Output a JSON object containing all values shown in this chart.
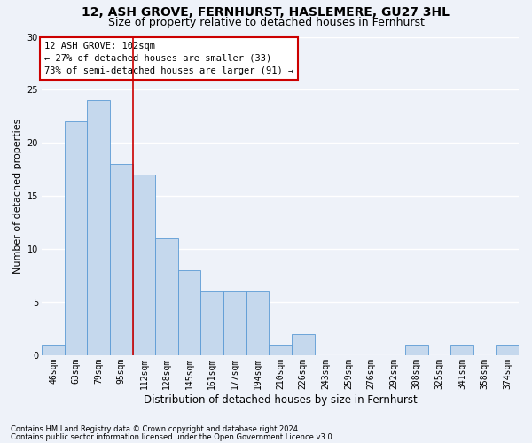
{
  "title1": "12, ASH GROVE, FERNHURST, HASLEMERE, GU27 3HL",
  "title2": "Size of property relative to detached houses in Fernhurst",
  "xlabel": "Distribution of detached houses by size in Fernhurst",
  "ylabel": "Number of detached properties",
  "categories": [
    "46sqm",
    "63sqm",
    "79sqm",
    "95sqm",
    "112sqm",
    "128sqm",
    "145sqm",
    "161sqm",
    "177sqm",
    "194sqm",
    "210sqm",
    "226sqm",
    "243sqm",
    "259sqm",
    "276sqm",
    "292sqm",
    "308sqm",
    "325sqm",
    "341sqm",
    "358sqm",
    "374sqm"
  ],
  "values": [
    1,
    22,
    24,
    18,
    17,
    11,
    8,
    6,
    6,
    6,
    1,
    2,
    0,
    0,
    0,
    0,
    1,
    0,
    1,
    0,
    1
  ],
  "bar_color": "#c5d8ed",
  "bar_edge_color": "#5b9bd5",
  "property_label": "12 ASH GROVE: 102sqm",
  "annotation_line1": "← 27% of detached houses are smaller (33)",
  "annotation_line2": "73% of semi-detached houses are larger (91) →",
  "redline_bar_index": 3,
  "ylim": [
    0,
    30
  ],
  "yticks": [
    0,
    5,
    10,
    15,
    20,
    25,
    30
  ],
  "footer1": "Contains HM Land Registry data © Crown copyright and database right 2024.",
  "footer2": "Contains public sector information licensed under the Open Government Licence v3.0.",
  "background_color": "#eef2f9",
  "grid_color": "#ffffff",
  "annotation_box_color": "#ffffff",
  "annotation_border_color": "#cc0000",
  "redline_color": "#cc0000",
  "title1_fontsize": 10,
  "title2_fontsize": 9,
  "ylabel_fontsize": 8,
  "xlabel_fontsize": 8.5,
  "tick_fontsize": 7,
  "annotation_fontsize": 7.5,
  "footer_fontsize": 6
}
